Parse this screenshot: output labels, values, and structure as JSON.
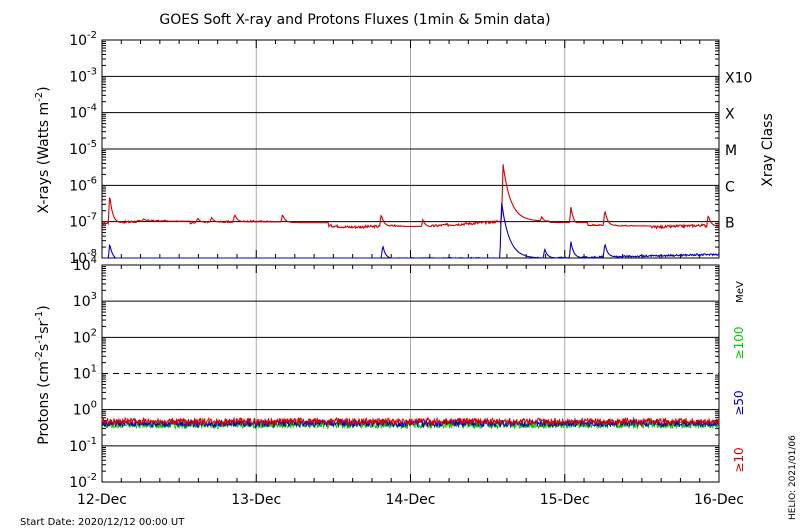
{
  "chart_data": {
    "type": "line",
    "title": "GOES Soft X-ray and Protons Fluxes   (1min & 5min data)",
    "start_label": "Start Date: 2020/12/12 00:00 UT",
    "credit_label": "HELIO: 2021/01/06",
    "x": {
      "ticks": [
        "12-Dec",
        "13-Dec",
        "14-Dec",
        "15-Dec",
        "16-Dec"
      ],
      "range_days": [
        0,
        4
      ]
    },
    "xray_panel": {
      "ylabel_base": "X-rays (Watts m",
      "ylabel_exp": "-2",
      "ylabel_close": ")",
      "right_label": "Xray Class",
      "yscale": "log",
      "ylim_exp": [
        -8,
        -2
      ],
      "tick_exps": [
        "-8",
        "-7",
        "-6",
        "-5",
        "-4",
        "-3",
        "-2"
      ],
      "class_labels": [
        {
          "text": "B",
          "exp": -7
        },
        {
          "text": "C",
          "exp": -6
        },
        {
          "text": "M",
          "exp": -5
        },
        {
          "text": "X",
          "exp": -4
        },
        {
          "text": "X10",
          "exp": -3
        }
      ],
      "series": [
        {
          "color": "#d40000",
          "baseline_log": [
            [
              0,
              -7.05
            ],
            [
              0.3,
              -6.98
            ],
            [
              0.6,
              -7.03
            ],
            [
              1.0,
              -7.0
            ],
            [
              1.3,
              -7.05
            ],
            [
              1.6,
              -7.15
            ],
            [
              1.9,
              -7.12
            ],
            [
              2.0,
              -7.18
            ],
            [
              2.2,
              -7.1
            ],
            [
              2.5,
              -7.02
            ],
            [
              2.7,
              -6.95
            ],
            [
              3.0,
              -7.1
            ],
            [
              3.3,
              -7.12
            ],
            [
              3.6,
              -7.15
            ],
            [
              3.9,
              -7.1
            ],
            [
              4.0,
              -7.2
            ]
          ],
          "peaks": [
            {
              "day": 0.05,
              "log": -6.25
            },
            {
              "day": 0.27,
              "log": -6.92
            },
            {
              "day": 0.62,
              "log": -6.9
            },
            {
              "day": 0.71,
              "log": -6.88
            },
            {
              "day": 0.86,
              "log": -6.8
            },
            {
              "day": 1.17,
              "log": -6.8
            },
            {
              "day": 1.81,
              "log": -6.8
            },
            {
              "day": 2.08,
              "log": -6.95
            },
            {
              "day": 2.6,
              "log": -5.42
            },
            {
              "day": 2.85,
              "log": -6.85
            },
            {
              "day": 3.04,
              "log": -6.6
            },
            {
              "day": 3.26,
              "log": -6.68
            },
            {
              "day": 3.93,
              "log": -6.82
            }
          ]
        },
        {
          "color": "#0000cc",
          "baseline_log": [
            [
              0,
              -8.05
            ],
            [
              3.0,
              -8.0
            ],
            [
              3.5,
              -7.95
            ],
            [
              4.0,
              -7.9
            ]
          ],
          "peaks": [
            {
              "day": 0.05,
              "log": -7.6
            },
            {
              "day": 1.82,
              "log": -7.65
            },
            {
              "day": 2.59,
              "log": -6.45
            },
            {
              "day": 2.87,
              "log": -7.75
            },
            {
              "day": 3.04,
              "log": -7.55
            },
            {
              "day": 3.26,
              "log": -7.6
            }
          ]
        }
      ]
    },
    "proton_panel": {
      "ylabel_base": "Protons (cm",
      "ylabel_exp1": "-2",
      "ylabel_mid1": "s",
      "ylabel_exp2": "-1",
      "ylabel_mid2": "sr",
      "ylabel_exp3": "-1",
      "ylabel_close": ")",
      "units_label": "MeV",
      "yscale": "log",
      "ylim_exp": [
        -2,
        4
      ],
      "tick_exps": [
        "-2",
        "-1",
        "0",
        "1",
        "2",
        "3",
        "4"
      ],
      "threshold_exp": 1,
      "channel_labels": [
        {
          "text": "≥100",
          "color": "#00cc00"
        },
        {
          "text": "≥50",
          "color": "#0000cc"
        },
        {
          "text": "≥10",
          "color": "#d40000"
        }
      ],
      "series": [
        {
          "color": "#00cc00",
          "level_log": -0.42
        },
        {
          "color": "#0000cc",
          "level_log": -0.38
        },
        {
          "color": "#d40000",
          "level_log": -0.33
        }
      ]
    }
  }
}
